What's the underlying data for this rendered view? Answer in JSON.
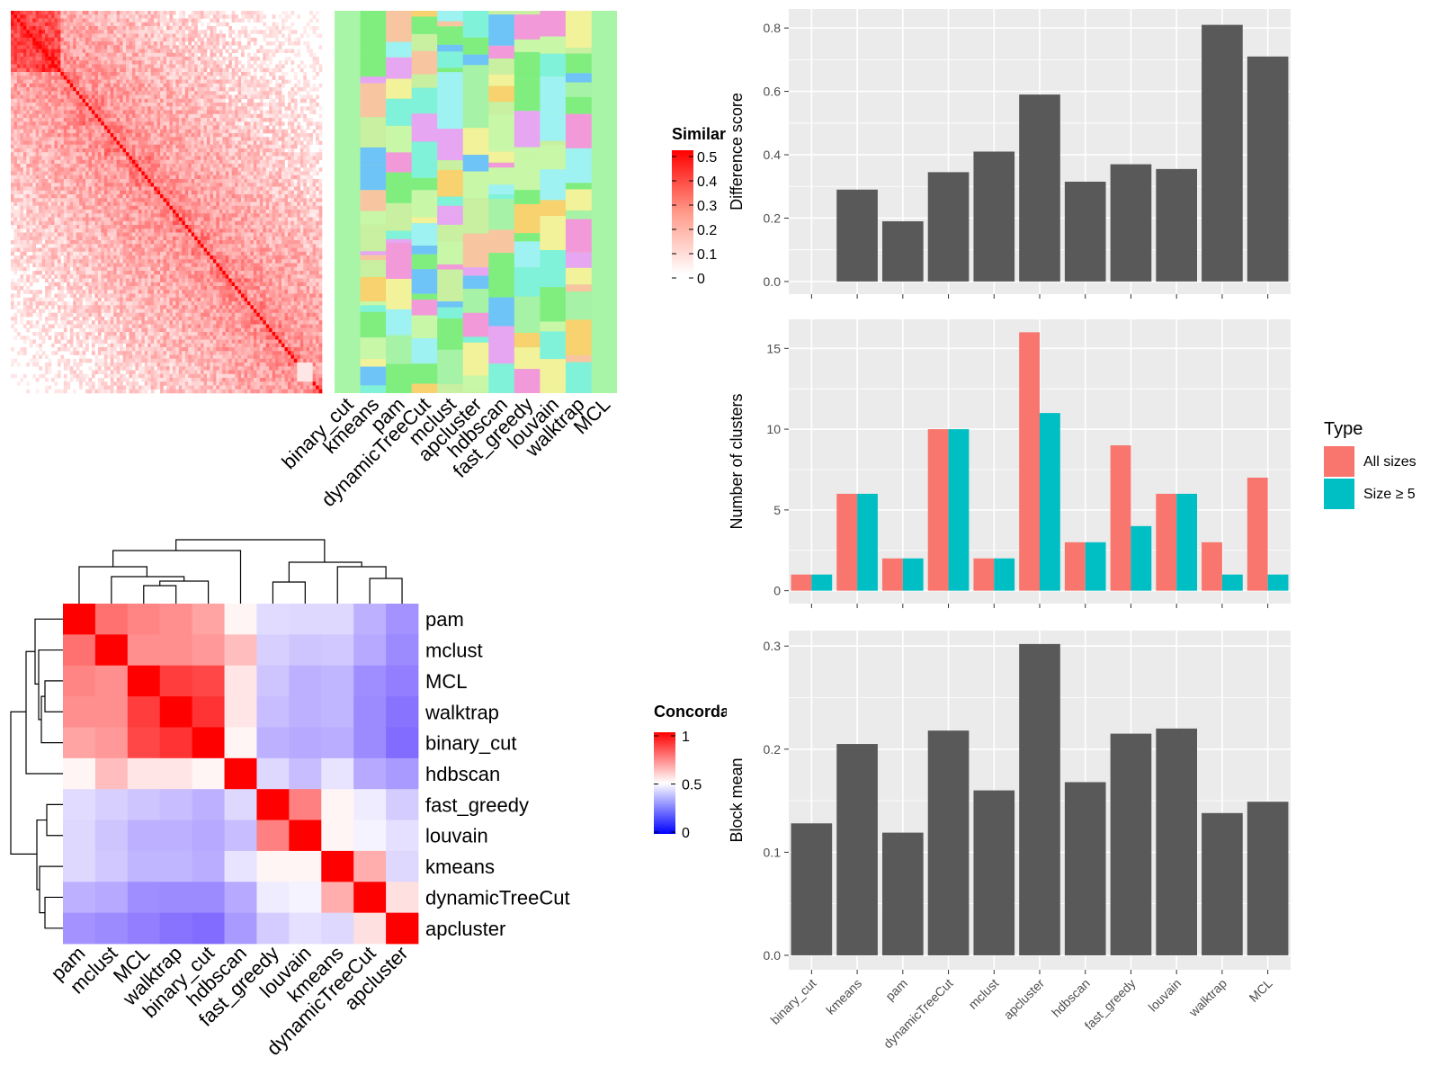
{
  "methods": [
    "binary_cut",
    "kmeans",
    "pam",
    "dynamicTreeCut",
    "mclust",
    "apcluster",
    "hdbscan",
    "fast_greedy",
    "louvain",
    "walktrap",
    "MCL"
  ],
  "similarity_legend": {
    "title": "Similarity",
    "ticks": [
      "0.5",
      "0.4",
      "0.3",
      "0.2",
      "0.1",
      "0"
    ],
    "colors": [
      "#ff0000",
      "#ffffff"
    ]
  },
  "concordance_legend": {
    "title": "Concordance",
    "ticks": [
      "1",
      "0.5",
      "0"
    ],
    "colors": [
      "#ff0000",
      "#ffffff",
      "#0000ff"
    ]
  },
  "concordance_heatmap": {
    "order": [
      "pam",
      "mclust",
      "MCL",
      "walktrap",
      "binary_cut",
      "hdbscan",
      "fast_greedy",
      "louvain",
      "kmeans",
      "dynamicTreeCut",
      "apcluster"
    ],
    "matrix": [
      [
        1.0,
        0.78,
        0.74,
        0.72,
        0.68,
        0.52,
        0.41,
        0.4,
        0.4,
        0.3,
        0.22
      ],
      [
        0.78,
        1.0,
        0.72,
        0.72,
        0.7,
        0.63,
        0.38,
        0.35,
        0.36,
        0.28,
        0.2
      ],
      [
        0.74,
        0.72,
        1.0,
        0.88,
        0.86,
        0.55,
        0.35,
        0.3,
        0.31,
        0.21,
        0.17
      ],
      [
        0.72,
        0.72,
        0.88,
        1.0,
        0.9,
        0.55,
        0.33,
        0.3,
        0.31,
        0.2,
        0.14
      ],
      [
        0.68,
        0.7,
        0.86,
        0.9,
        1.0,
        0.52,
        0.3,
        0.28,
        0.29,
        0.2,
        0.12
      ],
      [
        0.52,
        0.63,
        0.55,
        0.55,
        0.52,
        1.0,
        0.4,
        0.33,
        0.43,
        0.28,
        0.24
      ],
      [
        0.41,
        0.38,
        0.35,
        0.33,
        0.3,
        0.4,
        1.0,
        0.75,
        0.52,
        0.45,
        0.37
      ],
      [
        0.4,
        0.35,
        0.3,
        0.3,
        0.28,
        0.33,
        0.75,
        1.0,
        0.52,
        0.47,
        0.42
      ],
      [
        0.4,
        0.36,
        0.31,
        0.31,
        0.29,
        0.43,
        0.52,
        0.52,
        1.0,
        0.66,
        0.4
      ],
      [
        0.3,
        0.28,
        0.21,
        0.2,
        0.2,
        0.28,
        0.45,
        0.47,
        0.66,
        1.0,
        0.56
      ],
      [
        0.22,
        0.2,
        0.17,
        0.14,
        0.12,
        0.24,
        0.37,
        0.42,
        0.4,
        0.56,
        1.0
      ]
    ]
  },
  "chart_data": [
    {
      "type": "bar",
      "categories": [
        "binary_cut",
        "kmeans",
        "pam",
        "dynamicTreeCut",
        "mclust",
        "apcluster",
        "hdbscan",
        "fast_greedy",
        "louvain",
        "walktrap",
        "MCL"
      ],
      "values": [
        0.0,
        0.29,
        0.19,
        0.345,
        0.41,
        0.59,
        0.315,
        0.37,
        0.355,
        0.81,
        0.71
      ],
      "title": "",
      "xlabel": "",
      "ylabel": "Difference score",
      "ylim": [
        -0.04,
        0.86
      ],
      "ticks": [
        0.0,
        0.2,
        0.4,
        0.6,
        0.8
      ],
      "tick_labels": [
        "0.0",
        "0.2",
        "0.4",
        "0.6",
        "0.8"
      ],
      "grid": true,
      "colors": [
        "#595959"
      ]
    },
    {
      "type": "bar",
      "categories": [
        "binary_cut",
        "kmeans",
        "pam",
        "dynamicTreeCut",
        "mclust",
        "apcluster",
        "hdbscan",
        "fast_greedy",
        "louvain",
        "walktrap",
        "MCL"
      ],
      "series": [
        {
          "name": "All sizes",
          "values": [
            1,
            6,
            2,
            10,
            2,
            16,
            3,
            9,
            6,
            3,
            7
          ]
        },
        {
          "name": "Size ≥ 5",
          "values": [
            1,
            6,
            2,
            10,
            2,
            11,
            3,
            4,
            6,
            1,
            1
          ]
        }
      ],
      "title": "",
      "xlabel": "",
      "ylabel": "Number of clusters",
      "ylim": [
        -0.8,
        16.8
      ],
      "ticks": [
        0,
        5,
        10,
        15
      ],
      "tick_labels": [
        "0",
        "5",
        "10",
        "15"
      ],
      "grid": true,
      "legend": {
        "title": "Type",
        "position": "right"
      },
      "colors": [
        "#F8766D",
        "#00BFC4"
      ]
    },
    {
      "type": "bar",
      "categories": [
        "binary_cut",
        "kmeans",
        "pam",
        "dynamicTreeCut",
        "mclust",
        "apcluster",
        "hdbscan",
        "fast_greedy",
        "louvain",
        "walktrap",
        "MCL"
      ],
      "values": [
        0.128,
        0.205,
        0.119,
        0.218,
        0.16,
        0.302,
        0.168,
        0.215,
        0.22,
        0.138,
        0.149
      ],
      "title": "",
      "xlabel": "",
      "ylabel": "Block mean",
      "ylim": [
        -0.014,
        0.315
      ],
      "ticks": [
        0.0,
        0.1,
        0.2,
        0.3
      ],
      "tick_labels": [
        "0.0",
        "0.1",
        "0.2",
        "0.3"
      ],
      "grid": true,
      "colors": [
        "#595959"
      ]
    }
  ]
}
